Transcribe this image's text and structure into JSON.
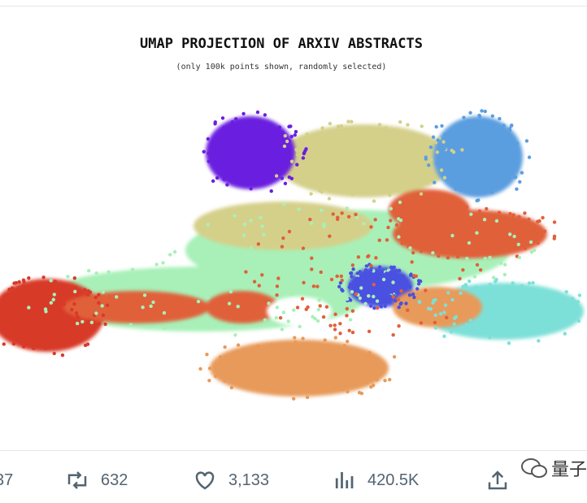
{
  "tweet": {
    "image": {
      "title": "UMAP PROJECTION OF ARXIV ABSTRACTS",
      "subtitle": "(only 100k points shown, randomly selected)"
    },
    "actions": {
      "replies": "37",
      "retweets": "632",
      "likes": "3,133",
      "views": "420.5K"
    },
    "watermark": "量子"
  }
}
